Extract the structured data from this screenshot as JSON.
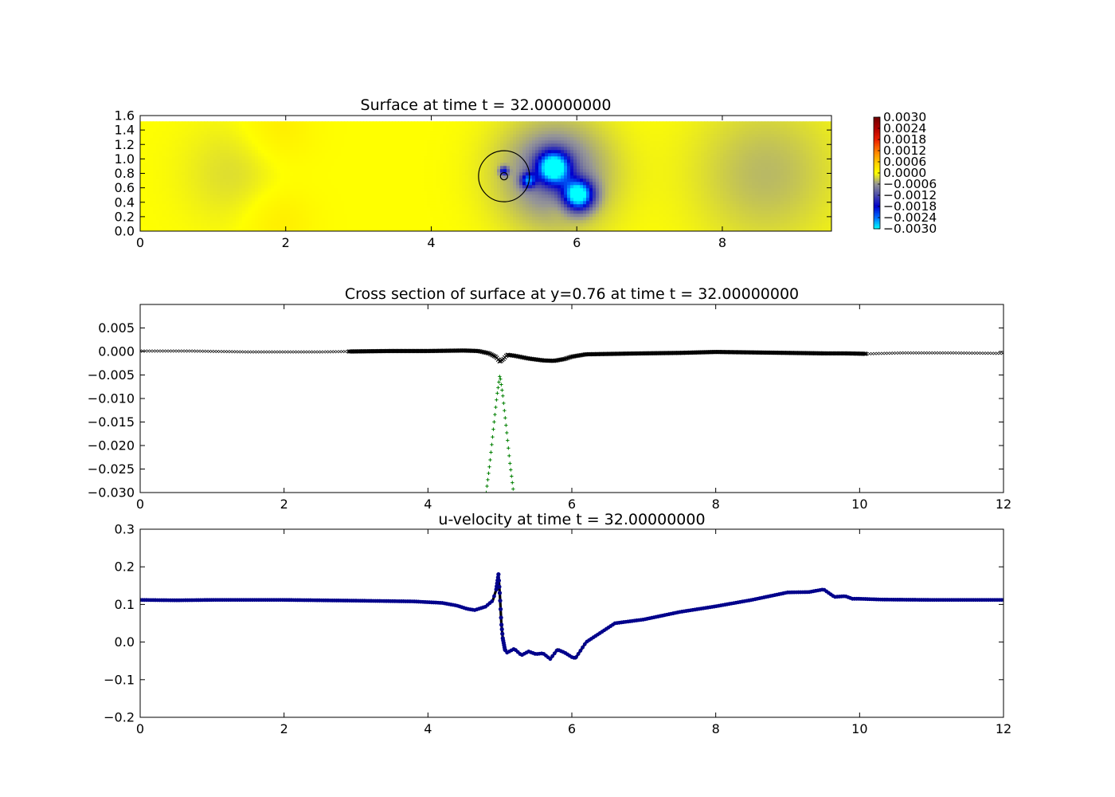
{
  "colors": {
    "frame": "#000000",
    "cross_section_main": "#000000",
    "cross_section_bottom": "#008000",
    "velocity_points": "#00008b",
    "velocity_line": "#000000"
  },
  "chart_data": [
    {
      "id": "surface",
      "type": "heatmap",
      "title": "Surface at time t =    32.00000000",
      "xlim": [
        0,
        9.5
      ],
      "ylim": [
        0,
        1.6
      ],
      "xticks": [
        "0",
        "2",
        "4",
        "6",
        "8"
      ],
      "xtick_values": [
        0,
        2,
        4,
        6,
        8
      ],
      "yticks": [
        "0.0",
        "0.2",
        "0.4",
        "0.6",
        "0.8",
        "1.0",
        "1.2",
        "1.4",
        "1.6"
      ],
      "ytick_values": [
        0,
        0.2,
        0.4,
        0.6,
        0.8,
        1.0,
        1.2,
        1.4,
        1.6
      ],
      "domain_top": 1.52,
      "colormap": "custom blue-gray-yellow-red",
      "colorbar": {
        "range": [
          -0.003,
          0.003
        ],
        "ticks": [
          "0.0030",
          "0.0024",
          "0.0018",
          "0.0012",
          "0.0006",
          "0.0000",
          "−0.0006",
          "−0.0012",
          "−0.0018",
          "−0.0024",
          "−0.0030"
        ],
        "tick_values": [
          0.003,
          0.0024,
          0.0018,
          0.0012,
          0.0006,
          0.0,
          -0.0006,
          -0.0012,
          -0.0018,
          -0.0024,
          -0.003
        ]
      },
      "background_value": 0.0,
      "features": [
        {
          "kind": "depression",
          "x": 5.68,
          "y": 0.88,
          "amplitude": -0.003,
          "radius": 0.22
        },
        {
          "kind": "depression",
          "x": 6.02,
          "y": 0.5,
          "amplitude": -0.003,
          "radius": 0.2
        },
        {
          "kind": "depression",
          "x": 5.33,
          "y": 0.7,
          "amplitude": -0.0018,
          "radius": 0.1
        },
        {
          "kind": "depression",
          "x": 5.0,
          "y": 0.83,
          "amplitude": -0.0016,
          "radius": 0.06
        },
        {
          "kind": "trough",
          "x": 5.7,
          "y": 0.8,
          "amplitude": -0.0009,
          "radius": 0.75
        },
        {
          "kind": "trough",
          "x": 8.6,
          "y": 0.8,
          "amplitude": -0.0004,
          "radius": 1.0
        },
        {
          "kind": "trough",
          "x": 1.3,
          "y": 0.8,
          "amplitude": -0.0002,
          "radius": 0.7
        },
        {
          "kind": "rise",
          "x": 1.9,
          "y": 0.15,
          "amplitude": 0.0002,
          "radius": 0.5
        },
        {
          "kind": "rise",
          "x": 1.9,
          "y": 1.4,
          "amplitude": 0.0002,
          "radius": 0.5
        },
        {
          "kind": "rise",
          "x": 5.8,
          "y": 0.35,
          "amplitude": 0.0002,
          "radius": 0.18
        }
      ],
      "circles": [
        {
          "x": 5.0,
          "y": 0.76,
          "r": 0.35
        },
        {
          "x": 5.0,
          "y": 0.76,
          "r": 0.05
        }
      ]
    },
    {
      "id": "cross-section",
      "type": "line",
      "title": "Cross section of surface at y=0.76 at time t =    32.00000000",
      "xlim": [
        0,
        12
      ],
      "ylim": [
        -0.03,
        0.01
      ],
      "xticks": [
        "0",
        "2",
        "4",
        "6",
        "8",
        "10",
        "12"
      ],
      "xtick_values": [
        0,
        2,
        4,
        6,
        8,
        10,
        12
      ],
      "yticks": [
        "0.005",
        "0.000",
        "−0.005",
        "−0.010",
        "−0.015",
        "−0.020",
        "−0.025",
        "−0.030"
      ],
      "ytick_values": [
        0.005,
        0.0,
        -0.005,
        -0.01,
        -0.015,
        -0.02,
        -0.025,
        -0.03
      ],
      "series": [
        {
          "marker": "x",
          "color": "#000000",
          "x": [
            0,
            0.7,
            1.5,
            2.5,
            2.9,
            3.5,
            4.0,
            4.5,
            4.7,
            4.85,
            4.95,
            5.0,
            5.05,
            5.1,
            5.2,
            5.4,
            5.6,
            5.75,
            5.9,
            6.0,
            6.2,
            6.6,
            7.0,
            7.5,
            8.0,
            8.5,
            9.0,
            9.5,
            9.8,
            10.1,
            10.6,
            11.2,
            12.0
          ],
          "y": [
            0.0001,
            0.0001,
            -0.0001,
            -0.0001,
            0.0,
            0.0001,
            0.0001,
            0.0002,
            0.0001,
            -0.0004,
            -0.0012,
            -0.0022,
            -0.0016,
            -0.0007,
            -0.0009,
            -0.0015,
            -0.0019,
            -0.002,
            -0.0016,
            -0.0011,
            -0.0006,
            -0.0005,
            -0.0004,
            -0.0003,
            -0.0001,
            -0.0002,
            -0.0003,
            -0.0004,
            -0.0004,
            -0.0005,
            -0.0003,
            -0.0003,
            -0.0004
          ]
        },
        {
          "marker": "+",
          "color": "#008000",
          "x": [
            4.81,
            4.86,
            4.91,
            4.96,
            5.0,
            5.04,
            5.09,
            5.14,
            5.19
          ],
          "y": [
            -0.03,
            -0.0238,
            -0.0164,
            -0.0093,
            -0.005,
            -0.0093,
            -0.0164,
            -0.0238,
            -0.03
          ]
        }
      ]
    },
    {
      "id": "u-velocity",
      "type": "scatter",
      "title": "u-velocity at time t =    32.00000000",
      "xlim": [
        0,
        12
      ],
      "ylim": [
        -0.2,
        0.3
      ],
      "xticks": [
        "0",
        "2",
        "4",
        "6",
        "8",
        "10",
        "12"
      ],
      "xtick_values": [
        0,
        2,
        4,
        6,
        8,
        10,
        12
      ],
      "yticks": [
        "0.3",
        "0.2",
        "0.1",
        "0.0",
        "−0.1",
        "−0.2"
      ],
      "ytick_values": [
        0.3,
        0.2,
        0.1,
        0.0,
        -0.1,
        -0.2
      ],
      "series": [
        {
          "marker": "o",
          "color": "#00008b",
          "x": [
            0,
            0.5,
            1.0,
            2.0,
            3.0,
            3.8,
            4.2,
            4.4,
            4.55,
            4.65,
            4.8,
            4.9,
            4.95,
            4.98,
            5.0,
            5.02,
            5.04,
            5.07,
            5.1,
            5.2,
            5.3,
            5.4,
            5.5,
            5.6,
            5.7,
            5.8,
            5.9,
            6.0,
            6.05,
            6.2,
            6.4,
            6.6,
            7.0,
            7.5,
            8.0,
            8.5,
            9.0,
            9.3,
            9.5,
            9.65,
            9.8,
            9.9,
            10.0,
            10.3,
            11.0,
            12.0
          ],
          "y": [
            0.112,
            0.111,
            0.112,
            0.112,
            0.11,
            0.108,
            0.104,
            0.097,
            0.088,
            0.085,
            0.094,
            0.11,
            0.14,
            0.18,
            0.125,
            0.05,
            0.01,
            -0.02,
            -0.028,
            -0.018,
            -0.035,
            -0.025,
            -0.032,
            -0.03,
            -0.045,
            -0.02,
            -0.028,
            -0.04,
            -0.043,
            0.0,
            0.025,
            0.05,
            0.06,
            0.08,
            0.095,
            0.112,
            0.132,
            0.133,
            0.14,
            0.12,
            0.122,
            0.115,
            0.115,
            0.113,
            0.112,
            0.112
          ]
        }
      ]
    }
  ]
}
